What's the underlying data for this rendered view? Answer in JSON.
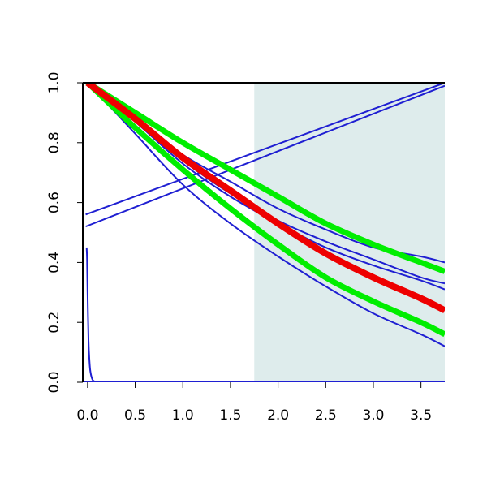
{
  "chart_data": {
    "type": "line",
    "title": "",
    "xlabel": "",
    "ylabel": "",
    "xlim": [
      -0.05,
      3.75
    ],
    "ylim": [
      0,
      1
    ],
    "grid": false,
    "legend": "none",
    "x_ticks": [
      0.0,
      0.5,
      1.0,
      1.5,
      2.0,
      2.5,
      3.0,
      3.5
    ],
    "x_tick_labels": [
      "0.0",
      "0.5",
      "1.0",
      "1.5",
      "2.0",
      "2.5",
      "3.0",
      "3.5"
    ],
    "y_ticks": [
      0.0,
      0.2,
      0.4,
      0.6,
      0.8,
      1.0
    ],
    "y_tick_labels": [
      "0.0",
      "0.2",
      "0.4",
      "0.6",
      "0.8",
      "1.0"
    ],
    "shaded_region": {
      "x": [
        1.75,
        3.75
      ],
      "color": "#deecec"
    },
    "series": [
      {
        "color": "#1f1fd2",
        "width": 2,
        "x": [
          0.0,
          0.5,
          1.0,
          1.5,
          2.0,
          2.5,
          3.0,
          3.5,
          3.75
        ],
        "y": [
          1.0,
          0.88,
          0.76,
          0.67,
          0.58,
          0.51,
          0.45,
          0.42,
          0.4
        ]
      },
      {
        "color": "#1f1fd2",
        "width": 2,
        "x": [
          0.0,
          0.5,
          1.0,
          1.5,
          2.0,
          2.5,
          3.0,
          3.5,
          3.75
        ],
        "y": [
          1.0,
          0.87,
          0.74,
          0.63,
          0.54,
          0.47,
          0.41,
          0.35,
          0.33
        ]
      },
      {
        "color": "#1f1fd2",
        "width": 2,
        "x": [
          0.0,
          0.5,
          1.0,
          1.5,
          2.0,
          2.5,
          3.0,
          3.5,
          3.75
        ],
        "y": [
          1.0,
          0.87,
          0.73,
          0.62,
          0.53,
          0.45,
          0.39,
          0.34,
          0.31
        ]
      },
      {
        "color": "#1f1fd2",
        "width": 2,
        "x": [
          0.0,
          0.5,
          1.0,
          1.5,
          2.0,
          2.5,
          3.0,
          3.5,
          3.75
        ],
        "y": [
          1.0,
          0.83,
          0.66,
          0.53,
          0.42,
          0.32,
          0.23,
          0.16,
          0.12
        ]
      },
      {
        "color": "#1f1fd2",
        "width": 2,
        "x": [
          -0.02,
          3.75
        ],
        "y": [
          0.56,
          1.0
        ]
      },
      {
        "color": "#1f1fd2",
        "width": 2,
        "x": [
          -0.02,
          3.75
        ],
        "y": [
          0.52,
          0.99
        ]
      },
      {
        "color": "#1f1fd2",
        "width": 2,
        "x": [
          -0.01,
          -0.005,
          0.0,
          0.01,
          0.02,
          0.03,
          0.05,
          0.08,
          0.15,
          3.75
        ],
        "y": [
          0.45,
          0.41,
          0.3,
          0.14,
          0.07,
          0.035,
          0.01,
          0.002,
          0.0,
          0.0
        ]
      },
      {
        "color": "#00ee00",
        "width": 7,
        "x": [
          0.0,
          0.5,
          1.0,
          1.5,
          2.0,
          2.5,
          3.0,
          3.5,
          3.75
        ],
        "y": [
          1.0,
          0.9,
          0.8,
          0.71,
          0.62,
          0.53,
          0.46,
          0.4,
          0.37
        ]
      },
      {
        "color": "#00ee00",
        "width": 7,
        "x": [
          0.0,
          0.5,
          1.0,
          1.5,
          2.0,
          2.5,
          3.0,
          3.5,
          3.75
        ],
        "y": [
          1.0,
          0.85,
          0.71,
          0.58,
          0.46,
          0.35,
          0.27,
          0.2,
          0.16
        ]
      },
      {
        "color": "#ee0000",
        "width": 8,
        "x": [
          0.0,
          0.5,
          1.0,
          1.5,
          2.0,
          2.5,
          3.0,
          3.5,
          3.75
        ],
        "y": [
          1.0,
          0.88,
          0.75,
          0.64,
          0.53,
          0.43,
          0.35,
          0.28,
          0.24
        ]
      }
    ]
  }
}
